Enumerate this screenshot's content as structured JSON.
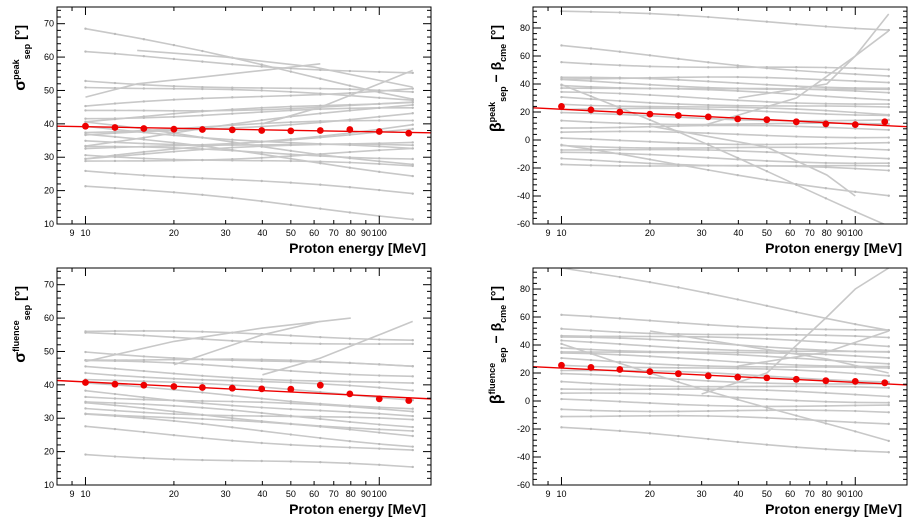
{
  "colors": {
    "grey_lines": "#c8c8c8",
    "mean_points": "#ee0000",
    "fit_line": "#ee0000",
    "frame": "#000000"
  },
  "chart_data": [
    {
      "type": "scatter",
      "xlabel": "Proton energy [MeV]",
      "ylabel_main": "σ",
      "ylabel_sup": "peak",
      "ylabel_sub": "sep",
      "ylabel_tail": "[°]",
      "xscale": "log",
      "xlim": [
        8,
        150
      ],
      "ylim": [
        10,
        75
      ],
      "xtick_labels": [
        "9",
        "10",
        "20",
        "30",
        "40",
        "50",
        "60",
        "70",
        "80",
        "90",
        "100"
      ],
      "yticks": [
        10,
        20,
        30,
        40,
        50,
        60,
        70
      ],
      "mean_points": {
        "x": [
          10,
          12.6,
          15.8,
          20,
          25,
          31.6,
          39.8,
          50,
          63,
          79.4,
          100,
          126
        ],
        "y": [
          39.3,
          38.9,
          38.6,
          38.4,
          38.3,
          38.2,
          38.0,
          37.9,
          38.0,
          38.3,
          37.7,
          37.2
        ]
      },
      "fit_line": {
        "x": [
          8,
          150
        ],
        "y": [
          39.3,
          37.3
        ]
      },
      "grey_lines_y_at_10_and_130": [
        [
          68.5,
          48
        ],
        [
          61,
          55
        ],
        [
          53,
          49
        ],
        [
          51.5,
          47.5
        ],
        [
          45,
          51
        ],
        [
          43.5,
          46
        ],
        [
          42,
          44.5
        ],
        [
          41,
          47
        ],
        [
          40,
          28
        ],
        [
          39,
          32
        ],
        [
          38,
          41
        ],
        [
          37,
          25
        ],
        [
          36,
          43
        ],
        [
          35,
          33
        ],
        [
          34,
          46
        ],
        [
          33,
          30
        ],
        [
          32,
          38
        ],
        [
          31,
          27
        ],
        [
          30,
          35
        ],
        [
          29,
          40
        ],
        [
          28.5,
          32
        ],
        [
          26.5,
          19
        ],
        [
          21.5,
          12
        ]
      ],
      "grey_lines_extra": [
        {
          "x": [
            10,
            15,
            25,
            40,
            63
          ],
          "y": [
            48,
            52,
            54,
            56,
            58
          ]
        },
        {
          "x": [
            40,
            63,
            100,
            130
          ],
          "y": [
            40,
            45,
            52,
            56
          ]
        },
        {
          "x": [
            15,
            30,
            60,
            100,
            130
          ],
          "y": [
            62,
            60,
            57,
            53,
            51
          ]
        }
      ]
    },
    {
      "type": "scatter",
      "xlabel": "Proton energy [MeV]",
      "ylabel_main": "β",
      "ylabel_sup": "peak",
      "ylabel_sub": "sep",
      "ylabel_tail": "− β",
      "ylabel_sub2": "cme",
      "ylabel_end": "[°]",
      "xscale": "log",
      "xlim": [
        8,
        150
      ],
      "ylim": [
        -60,
        95
      ],
      "xtick_labels": [
        "9",
        "10",
        "20",
        "30",
        "40",
        "50",
        "60",
        "70",
        "80",
        "90",
        "100"
      ],
      "yticks": [
        -60,
        -40,
        -20,
        0,
        20,
        40,
        60,
        80
      ],
      "mean_points": {
        "x": [
          10,
          12.6,
          15.8,
          20,
          25,
          31.6,
          39.8,
          50,
          63,
          79.4,
          100,
          126
        ],
        "y": [
          24,
          21.5,
          20,
          18.5,
          17.5,
          16.5,
          15,
          14.5,
          13,
          11.5,
          11,
          13
        ]
      },
      "fit_line": {
        "x": [
          8,
          150
        ],
        "y": [
          23,
          9.5
        ]
      },
      "grey_lines_y_at_10_and_130": [
        [
          92,
          80
        ],
        [
          66,
          45
        ],
        [
          56,
          49
        ],
        [
          45,
          42
        ],
        [
          44,
          38
        ],
        [
          42,
          35
        ],
        [
          40,
          33
        ],
        [
          38,
          30
        ],
        [
          33,
          26
        ],
        [
          30,
          22
        ],
        [
          27,
          18
        ],
        [
          22,
          19
        ],
        [
          18,
          14
        ],
        [
          14,
          10
        ],
        [
          10,
          8
        ],
        [
          5,
          3
        ],
        [
          0,
          -3
        ],
        [
          -3,
          -8
        ],
        [
          -6,
          -12
        ],
        [
          -10,
          -16
        ],
        [
          -14,
          -20
        ],
        [
          -16,
          -22
        ],
        [
          40,
          -60
        ],
        [
          -5,
          -40
        ]
      ],
      "grey_lines_extra": [
        {
          "x": [
            30,
            63,
            100,
            130
          ],
          "y": [
            10,
            30,
            60,
            90
          ]
        },
        {
          "x": [
            40,
            80,
            100,
            130
          ],
          "y": [
            30,
            40,
            60,
            78
          ]
        },
        {
          "x": [
            20,
            50,
            80,
            100
          ],
          "y": [
            10,
            -5,
            -25,
            -40
          ]
        }
      ]
    },
    {
      "type": "scatter",
      "xlabel": "Proton energy [MeV]",
      "ylabel_main": "σ",
      "ylabel_sup": "fluence",
      "ylabel_sub": "sep",
      "ylabel_tail": "[°]",
      "xscale": "log",
      "xlim": [
        8,
        150
      ],
      "ylim": [
        10,
        75
      ],
      "xtick_labels": [
        "9",
        "10",
        "20",
        "30",
        "40",
        "50",
        "60",
        "70",
        "80",
        "90",
        "100"
      ],
      "yticks": [
        10,
        20,
        30,
        40,
        50,
        60,
        70
      ],
      "mean_points": {
        "x": [
          10,
          12.6,
          15.8,
          20,
          25,
          31.6,
          39.8,
          50,
          63,
          79.4,
          100,
          126
        ],
        "y": [
          40.7,
          40.2,
          39.9,
          39.5,
          39.2,
          39.0,
          38.8,
          38.7,
          39.9,
          37.3,
          35.8,
          35.3
        ]
      },
      "fit_line": {
        "x": [
          8,
          150
        ],
        "y": [
          41.3,
          35.8
        ]
      },
      "grey_lines_y_at_10_and_130": [
        [
          56,
          54
        ],
        [
          55,
          52
        ],
        [
          50,
          45
        ],
        [
          48,
          46
        ],
        [
          47,
          43
        ],
        [
          45,
          40
        ],
        [
          44,
          38
        ],
        [
          42,
          36
        ],
        [
          40,
          33
        ],
        [
          38,
          30
        ],
        [
          37,
          32
        ],
        [
          35,
          28
        ],
        [
          34,
          26
        ],
        [
          33,
          29
        ],
        [
          32,
          25
        ],
        [
          31,
          22
        ],
        [
          27,
          20
        ],
        [
          19.5,
          15
        ]
      ],
      "grey_lines_extra": [
        {
          "x": [
            10,
            20,
            40,
            80
          ],
          "y": [
            47,
            53,
            57,
            60
          ]
        },
        {
          "x": [
            40,
            63,
            100,
            130
          ],
          "y": [
            43,
            48,
            55,
            59
          ]
        },
        {
          "x": [
            20,
            40,
            63
          ],
          "y": [
            46,
            55,
            59
          ]
        }
      ]
    },
    {
      "type": "scatter",
      "xlabel": "Proton energy [MeV]",
      "ylabel_main": "β",
      "ylabel_sup": "fluence",
      "ylabel_sub": "sep",
      "ylabel_tail": "− β",
      "ylabel_sub2": "cme",
      "ylabel_end": "[°]",
      "xscale": "log",
      "xlim": [
        8,
        150
      ],
      "ylim": [
        -60,
        95
      ],
      "xtick_labels": [
        "9",
        "10",
        "20",
        "30",
        "40",
        "50",
        "60",
        "70",
        "80",
        "90",
        "100"
      ],
      "yticks": [
        -60,
        -40,
        -20,
        0,
        20,
        40,
        60,
        80
      ],
      "mean_points": {
        "x": [
          10,
          12.6,
          15.8,
          20,
          25,
          31.6,
          39.8,
          50,
          63,
          79.4,
          100,
          126
        ],
        "y": [
          25.5,
          24,
          22.5,
          21,
          19.5,
          18,
          17,
          16.5,
          15.5,
          14.5,
          14,
          13
        ]
      },
      "fit_line": {
        "x": [
          8,
          150
        ],
        "y": [
          24.5,
          11.5
        ]
      },
      "grey_lines_y_at_10_and_130": [
        [
          95,
          52
        ],
        [
          60,
          50
        ],
        [
          52,
          44
        ],
        [
          48,
          40
        ],
        [
          45,
          36
        ],
        [
          42,
          34
        ],
        [
          39,
          30
        ],
        [
          36,
          28
        ],
        [
          33,
          25
        ],
        [
          30,
          22
        ],
        [
          27,
          18
        ],
        [
          22,
          15
        ],
        [
          18,
          12
        ],
        [
          14,
          8
        ],
        [
          10,
          4
        ],
        [
          5,
          0
        ],
        [
          0,
          -4
        ],
        [
          -5,
          -9
        ],
        [
          -10,
          -15
        ],
        [
          -20,
          -36
        ],
        [
          40,
          -30
        ]
      ],
      "grey_lines_extra": [
        {
          "x": [
            30,
            50,
            80,
            100,
            130
          ],
          "y": [
            5,
            20,
            60,
            80,
            95
          ]
        },
        {
          "x": [
            40,
            80,
            130
          ],
          "y": [
            25,
            35,
            50
          ]
        },
        {
          "x": [
            20,
            40,
            80,
            130
          ],
          "y": [
            50,
            40,
            30,
            20
          ]
        }
      ]
    }
  ]
}
